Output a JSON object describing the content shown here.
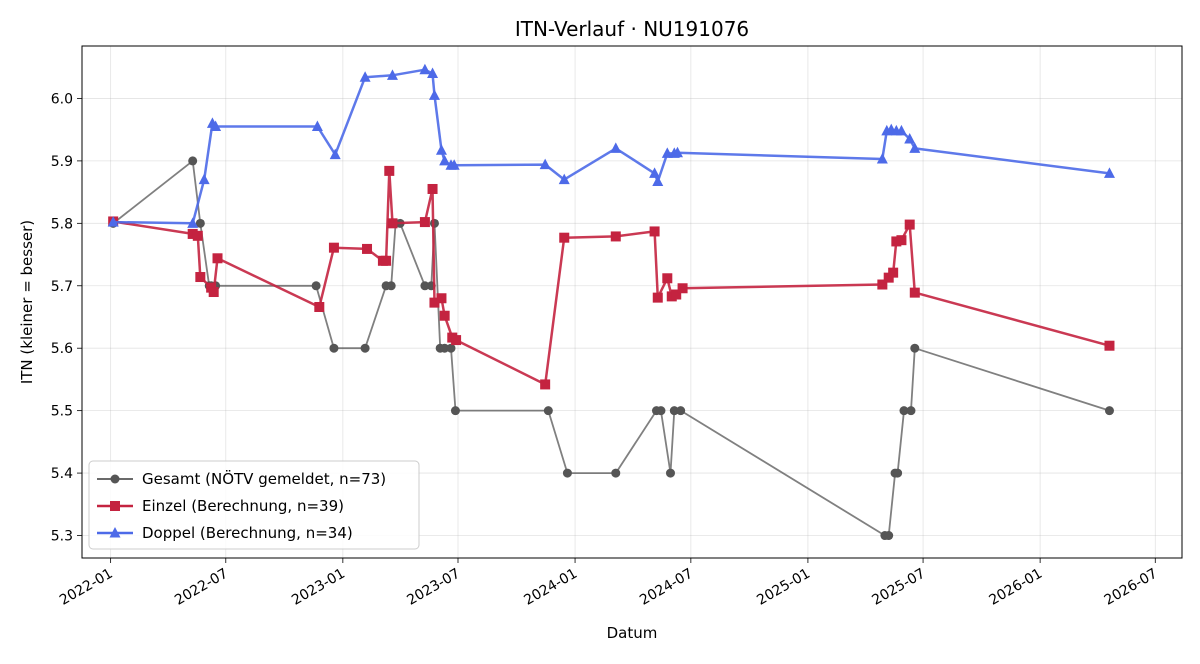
{
  "chart_data": {
    "type": "line",
    "title": "ITN-Verlauf · NU191076",
    "xlabel": "Datum",
    "ylabel": "ITN  (kleiner = besser)",
    "x_axis_type": "date",
    "xlim": [
      "2021-11-17",
      "2026-08-12"
    ],
    "ylim": [
      5.264,
      6.084
    ],
    "grid": true,
    "legend_position": "lower-left",
    "x_ticks": [
      "2022-01",
      "2022-07",
      "2023-01",
      "2023-07",
      "2024-01",
      "2024-07",
      "2025-01",
      "2025-07",
      "2026-01",
      "2026-07"
    ],
    "y_ticks": [
      "5.3",
      "5.4",
      "5.5",
      "5.6",
      "5.7",
      "5.8",
      "5.9",
      "6.0"
    ],
    "series": [
      {
        "name": "Gesamt (NÖTV gemeldet, n=73)",
        "color": "#555555",
        "marker": "circle",
        "x": [
          "2022-01-05",
          "2022-05-10",
          "2022-05-22",
          "2022-06-05",
          "2022-06-08",
          "2022-06-15",
          "2022-11-20",
          "2022-12-18",
          "2023-02-05",
          "2023-03-10",
          "2023-03-18",
          "2023-03-25",
          "2023-04-01",
          "2023-05-10",
          "2023-05-20",
          "2023-05-25",
          "2023-06-03",
          "2023-06-10",
          "2023-06-20",
          "2023-06-27",
          "2023-11-20",
          "2023-12-20",
          "2024-03-05",
          "2024-05-08",
          "2024-05-15",
          "2024-05-30",
          "2024-06-05",
          "2024-06-15",
          "2025-05-02",
          "2025-05-08",
          "2025-05-18",
          "2025-05-22",
          "2025-06-01",
          "2025-06-12",
          "2025-06-18",
          "2026-04-20"
        ],
        "y": [
          5.8,
          5.9,
          5.8,
          5.7,
          5.7,
          5.7,
          5.7,
          5.6,
          5.6,
          5.7,
          5.7,
          5.8,
          5.8,
          5.7,
          5.7,
          5.8,
          5.6,
          5.6,
          5.6,
          5.5,
          5.5,
          5.4,
          5.4,
          5.5,
          5.5,
          5.4,
          5.5,
          5.5,
          5.3,
          5.3,
          5.4,
          5.4,
          5.5,
          5.5,
          5.6,
          5.5
        ]
      },
      {
        "name": "Einzel (Berechnung, n=39)",
        "color": "#c42340",
        "marker": "square",
        "x": [
          "2022-01-05",
          "2022-05-10",
          "2022-05-18",
          "2022-05-22",
          "2022-06-08",
          "2022-06-12",
          "2022-06-18",
          "2022-11-25",
          "2022-12-18",
          "2023-02-08",
          "2023-03-05",
          "2023-03-10",
          "2023-03-15",
          "2023-03-20",
          "2023-05-10",
          "2023-05-22",
          "2023-05-25",
          "2023-06-05",
          "2023-06-10",
          "2023-06-22",
          "2023-06-28",
          "2023-11-15",
          "2023-12-15",
          "2024-03-05",
          "2024-05-05",
          "2024-05-10",
          "2024-05-25",
          "2024-06-01",
          "2024-06-08",
          "2024-06-18",
          "2025-04-28",
          "2025-05-08",
          "2025-05-15",
          "2025-05-20",
          "2025-05-28",
          "2025-06-10",
          "2025-06-18",
          "2026-04-20"
        ],
        "y": [
          5.803,
          5.783,
          5.78,
          5.714,
          5.697,
          5.69,
          5.744,
          5.666,
          5.761,
          5.759,
          5.74,
          5.74,
          5.884,
          5.8,
          5.802,
          5.855,
          5.673,
          5.68,
          5.652,
          5.617,
          5.613,
          5.542,
          5.777,
          5.779,
          5.787,
          5.681,
          5.712,
          5.683,
          5.686,
          5.696,
          5.702,
          5.713,
          5.721,
          5.771,
          5.773,
          5.798,
          5.689,
          5.604
        ]
      },
      {
        "name": "Doppel (Berechnung, n=34)",
        "color": "#4d6ae8",
        "marker": "triangle",
        "x": [
          "2022-01-05",
          "2022-05-10",
          "2022-05-28",
          "2022-06-10",
          "2022-06-15",
          "2022-11-22",
          "2022-12-20",
          "2023-02-05",
          "2023-03-20",
          "2023-05-10",
          "2023-05-22",
          "2023-05-25",
          "2023-06-05",
          "2023-06-10",
          "2023-06-20",
          "2023-06-25",
          "2023-11-15",
          "2023-12-15",
          "2024-03-05",
          "2024-05-05",
          "2024-05-10",
          "2024-05-25",
          "2024-06-05",
          "2024-06-10",
          "2025-04-28",
          "2025-05-05",
          "2025-05-12",
          "2025-05-20",
          "2025-05-28",
          "2025-06-10",
          "2025-06-18",
          "2026-04-20"
        ],
        "y": [
          5.802,
          5.8,
          5.87,
          5.96,
          5.955,
          5.955,
          5.91,
          6.034,
          6.037,
          6.046,
          6.04,
          6.005,
          5.917,
          5.9,
          5.893,
          5.893,
          5.894,
          5.87,
          5.92,
          5.88,
          5.867,
          5.912,
          5.912,
          5.913,
          5.903,
          5.948,
          5.95,
          5.948,
          5.948,
          5.935,
          5.92,
          5.88
        ]
      }
    ]
  }
}
